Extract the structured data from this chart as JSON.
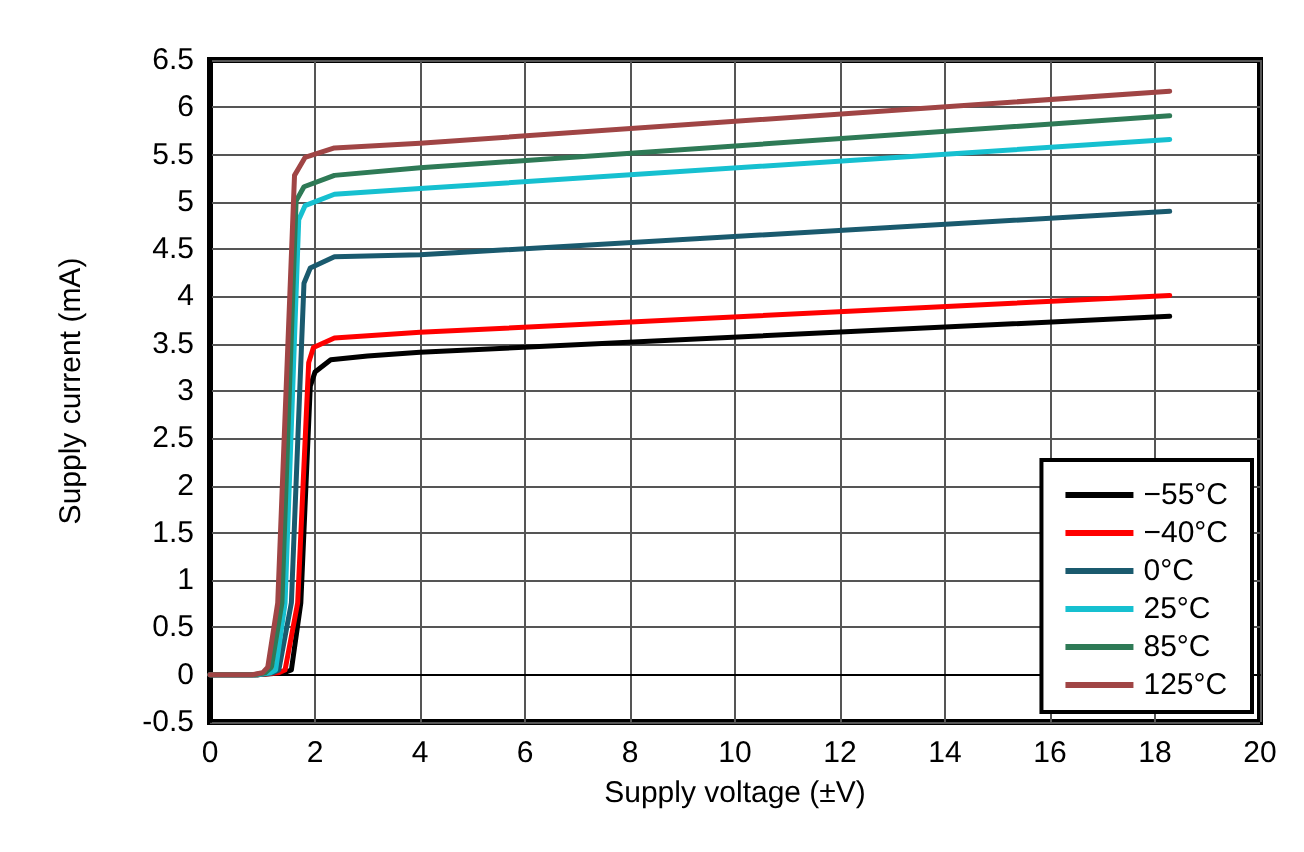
{
  "chart_data": {
    "type": "line",
    "xlabel": "Supply voltage (±V)",
    "ylabel": "Supply current (mA)",
    "xlim": [
      0,
      20
    ],
    "xticks": [
      0,
      2,
      4,
      6,
      8,
      10,
      12,
      14,
      16,
      18,
      20
    ],
    "ylim": [
      -0.5,
      6.5
    ],
    "yticks": [
      -0.5,
      0,
      0.5,
      1,
      1.5,
      2,
      2.5,
      3,
      3.5,
      4,
      4.5,
      5,
      5.5,
      6,
      6.5
    ],
    "grid": true,
    "legend": "bottom right",
    "series": [
      {
        "name": "−55°C",
        "color": "#000000",
        "x": [
          0,
          0.9,
          1.4,
          1.55,
          1.73,
          1.91,
          2.0,
          2.3,
          3,
          4,
          18.28
        ],
        "values": [
          0,
          0,
          0.02,
          0.05,
          0.76,
          3.05,
          3.2,
          3.33,
          3.37,
          3.41,
          3.79
        ]
      },
      {
        "name": "−40°C",
        "color": "#ff0000",
        "x": [
          0,
          0.9,
          1.3,
          1.43,
          1.67,
          1.88,
          1.97,
          2.37,
          4,
          18.28
        ],
        "values": [
          0,
          0,
          0.02,
          0.05,
          0.76,
          3.3,
          3.46,
          3.56,
          3.62,
          4.01
        ]
      },
      {
        "name": "0°C",
        "color": "#1a5a6e",
        "x": [
          0,
          0.9,
          1.2,
          1.31,
          1.55,
          1.79,
          1.91,
          2.37,
          4,
          18.28
        ],
        "values": [
          0,
          0,
          0.02,
          0.05,
          0.76,
          4.14,
          4.3,
          4.42,
          4.44,
          4.9
        ]
      },
      {
        "name": "25°C",
        "color": "#16c0d0",
        "x": [
          0,
          0.9,
          1.15,
          1.25,
          1.43,
          1.69,
          1.81,
          2.37,
          4,
          18.28
        ],
        "values": [
          0,
          0,
          0.02,
          0.05,
          0.76,
          4.81,
          4.96,
          5.08,
          5.14,
          5.66
        ]
      },
      {
        "name": "85°C",
        "color": "#2e7a56",
        "x": [
          0,
          0.85,
          1.05,
          1.17,
          1.37,
          1.64,
          1.79,
          2.37,
          4,
          18.28
        ],
        "values": [
          0,
          0,
          0.02,
          0.08,
          0.76,
          5.01,
          5.16,
          5.28,
          5.36,
          5.91
        ]
      },
      {
        "name": "125°C",
        "color": "#a04545",
        "x": [
          0,
          0.8,
          1.0,
          1.1,
          1.29,
          1.61,
          1.81,
          2.37,
          4,
          18.28
        ],
        "values": [
          0,
          0,
          0.02,
          0.08,
          0.76,
          5.28,
          5.47,
          5.57,
          5.62,
          6.17
        ]
      }
    ]
  }
}
